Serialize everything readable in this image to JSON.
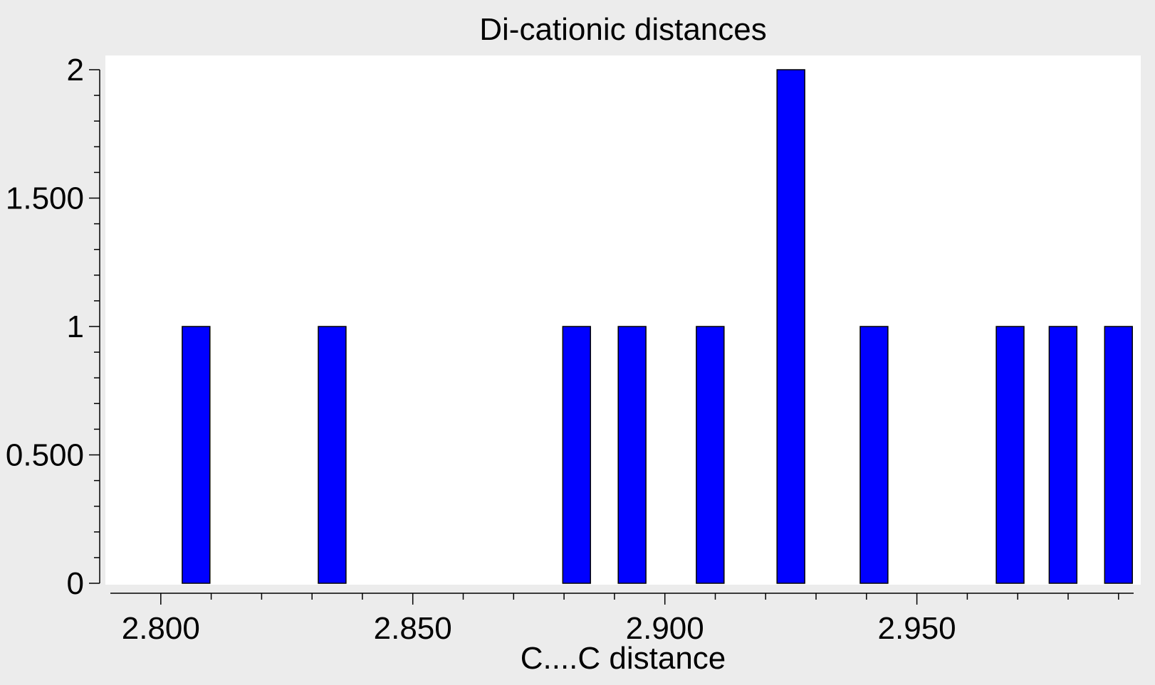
{
  "chart_data": {
    "type": "bar",
    "title": "Di-cationic distances",
    "xlabel": "C....C  distance",
    "ylabel": "",
    "xlim": [
      2.79,
      2.993
    ],
    "ylim": [
      0,
      2
    ],
    "bar_width": 0.0055,
    "grid": false,
    "legend": "none",
    "x_ticks": [
      {
        "value": 2.8,
        "label": "2.800"
      },
      {
        "value": 2.85,
        "label": "2.850"
      },
      {
        "value": 2.9,
        "label": "2.900"
      },
      {
        "value": 2.95,
        "label": "2.950"
      }
    ],
    "y_ticks": [
      {
        "value": 0,
        "label": "0"
      },
      {
        "value": 0.5,
        "label": "0.500"
      },
      {
        "value": 1,
        "label": "1"
      },
      {
        "value": 1.5,
        "label": "1.500"
      },
      {
        "value": 2,
        "label": "2"
      }
    ],
    "x": [
      2.807,
      2.834,
      2.8825,
      2.8935,
      2.909,
      2.925,
      2.9415,
      2.9685,
      2.979,
      2.99
    ],
    "values": [
      1,
      1,
      1,
      1,
      1,
      2,
      1,
      1,
      1,
      1
    ],
    "colors": {
      "bar": "#0000ff",
      "bar_outline": "#000000",
      "plot_background": "#ffffff",
      "page_background": "#ececec"
    }
  }
}
